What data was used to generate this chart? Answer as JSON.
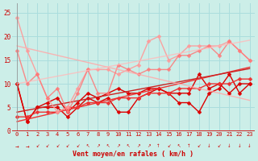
{
  "xlabel": "Vent moyen/en rafales ( km/h )",
  "x": [
    0,
    1,
    2,
    3,
    4,
    5,
    6,
    7,
    8,
    9,
    10,
    11,
    12,
    13,
    14,
    15,
    16,
    17,
    18,
    19,
    20,
    21,
    22,
    23
  ],
  "ylim": [
    0,
    27
  ],
  "xlim": [
    -0.5,
    23.5
  ],
  "yticks": [
    0,
    5,
    10,
    15,
    20,
    25
  ],
  "bg_color": "#cceee8",
  "grid_color": "#aadddd",
  "series": [
    {
      "comment": "dark red wiggly line - main data series 1",
      "color": "#dd0000",
      "alpha": 1.0,
      "lw": 1.0,
      "marker": "D",
      "ms": 2.5,
      "y": [
        10,
        2,
        5,
        6,
        7,
        4,
        6,
        8,
        7,
        8,
        9,
        8,
        8,
        9,
        9,
        8,
        8,
        8,
        12,
        9,
        10,
        8,
        10,
        10
      ]
    },
    {
      "comment": "dark red wiggly line - main data series 2",
      "color": "#dd0000",
      "alpha": 1.0,
      "lw": 1.0,
      "marker": "D",
      "ms": 2.5,
      "y": [
        10,
        2,
        5,
        5,
        5,
        3,
        5,
        7,
        6,
        7,
        4,
        4,
        7,
        8,
        9,
        8,
        6,
        6,
        4,
        8,
        9,
        12,
        8,
        10
      ]
    },
    {
      "comment": "medium red - trend line 1 going from low-left to high-right",
      "color": "#ee3333",
      "alpha": 1.0,
      "lw": 1.0,
      "marker": "D",
      "ms": 2.5,
      "y": [
        3,
        3,
        4,
        4,
        4,
        5,
        5,
        6,
        6,
        6,
        7,
        7,
        7,
        8,
        8,
        8,
        9,
        9,
        9,
        10,
        10,
        10,
        11,
        11
      ]
    },
    {
      "comment": "medium red - trend line 2",
      "color": "#ee3333",
      "alpha": 1.0,
      "lw": 1.0,
      "marker": null,
      "ms": 0,
      "y": [
        2,
        2.5,
        3,
        3.5,
        4,
        4.5,
        5,
        5.5,
        6,
        6.5,
        7,
        7.5,
        8,
        8.5,
        9,
        9.5,
        10,
        10.5,
        11,
        11.5,
        12,
        12.5,
        13,
        13.5
      ]
    },
    {
      "comment": "medium red - trend line 3",
      "color": "#cc2222",
      "alpha": 1.0,
      "lw": 1.0,
      "marker": null,
      "ms": 0,
      "y": [
        4,
        4.4,
        4.8,
        5.2,
        5.6,
        6.0,
        6.4,
        6.8,
        7.2,
        7.6,
        8.0,
        8.4,
        8.8,
        9.2,
        9.6,
        10.0,
        10.4,
        10.8,
        11.2,
        11.6,
        12.0,
        12.4,
        12.8,
        13.2
      ]
    },
    {
      "comment": "light pink - long wiggly line with high peak around 14",
      "color": "#ff9999",
      "alpha": 0.9,
      "lw": 1.0,
      "marker": "D",
      "ms": 2.5,
      "y": [
        24,
        17,
        12,
        7,
        4,
        5,
        9,
        13,
        13,
        13,
        12,
        13,
        14,
        19,
        20,
        15,
        16,
        18,
        18,
        18,
        18,
        19,
        17,
        15
      ]
    },
    {
      "comment": "medium pink - wiggly line",
      "color": "#ff7777",
      "alpha": 0.85,
      "lw": 1.0,
      "marker": "D",
      "ms": 2.5,
      "y": [
        17,
        10,
        12,
        7,
        9,
        4,
        8,
        13,
        8,
        8,
        14,
        13,
        12,
        13,
        13,
        13,
        16,
        16,
        17,
        18,
        16,
        19,
        17,
        15
      ]
    },
    {
      "comment": "pink trend line - going from high left to mid right",
      "color": "#ffaaaa",
      "alpha": 0.85,
      "lw": 1.0,
      "marker": null,
      "ms": 0,
      "y": [
        18,
        17.5,
        17,
        16.5,
        16,
        15.5,
        15,
        14.5,
        14,
        13.5,
        13,
        12.5,
        12,
        11.5,
        11,
        10.5,
        10,
        9.5,
        9,
        8.5,
        8,
        7.5,
        7,
        6.5
      ]
    },
    {
      "comment": "pink trend line 2 - going upward",
      "color": "#ffbbbb",
      "alpha": 0.8,
      "lw": 1.0,
      "marker": null,
      "ms": 0,
      "y": [
        10,
        10.4,
        10.8,
        11.2,
        11.6,
        12.0,
        12.4,
        12.8,
        13.2,
        13.6,
        14.0,
        14.4,
        14.8,
        15.2,
        15.6,
        16.0,
        16.4,
        16.8,
        17.2,
        17.6,
        18.0,
        18.4,
        18.8,
        19.2
      ]
    }
  ],
  "wind_symbols": [
    "→",
    "→",
    "↙",
    "↙",
    "↙",
    "↙",
    "↙",
    "↖",
    "↗",
    "↖",
    "↗",
    "↖",
    "↗",
    "↗",
    "↑",
    "↙",
    "↖",
    "↑",
    "↙",
    "↓",
    "↙",
    "↓",
    "↓",
    "↓"
  ]
}
